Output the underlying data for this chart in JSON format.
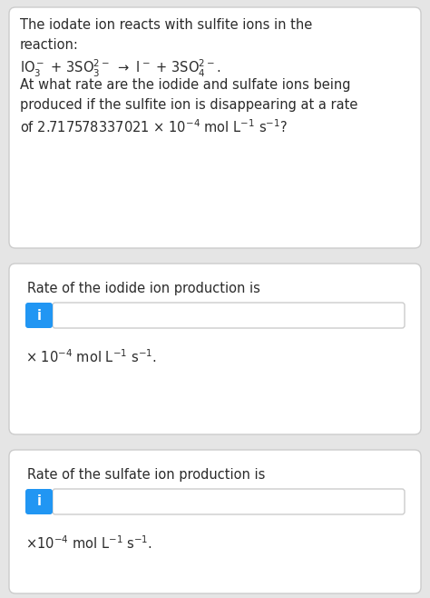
{
  "bg_color": "#e5e5e5",
  "card_color": "#ffffff",
  "card_border_color": "#cccccc",
  "text_color": "#2b2b2b",
  "info_btn_color": "#2196f3",
  "info_btn_text": "i",
  "input_box_color": "#ffffff",
  "input_box_border": "#cccccc",
  "font_size_main": 10.5,
  "font_size_reaction": 10.5,
  "line1": "The iodate ion reacts with sulfite ions in the",
  "line2": "reaction:",
  "line4": "At what rate are the iodide and sulfate ions being",
  "line5": "produced if the sulfite ion is disappearing at a rate",
  "line6": "of 2.717578337021 × 10⁻⁴ mol L⁻¹ s⁻¹?",
  "iodide_label": "Rate of the iodide ion production is",
  "iodide_unit_prefix": "× 10",
  "iodide_unit_suffix": " mol L",
  "sulfate_label": "Rate of the sulfate ion production is",
  "sulfate_unit_prefix": "×10",
  "sulfate_unit_suffix": " mol L"
}
